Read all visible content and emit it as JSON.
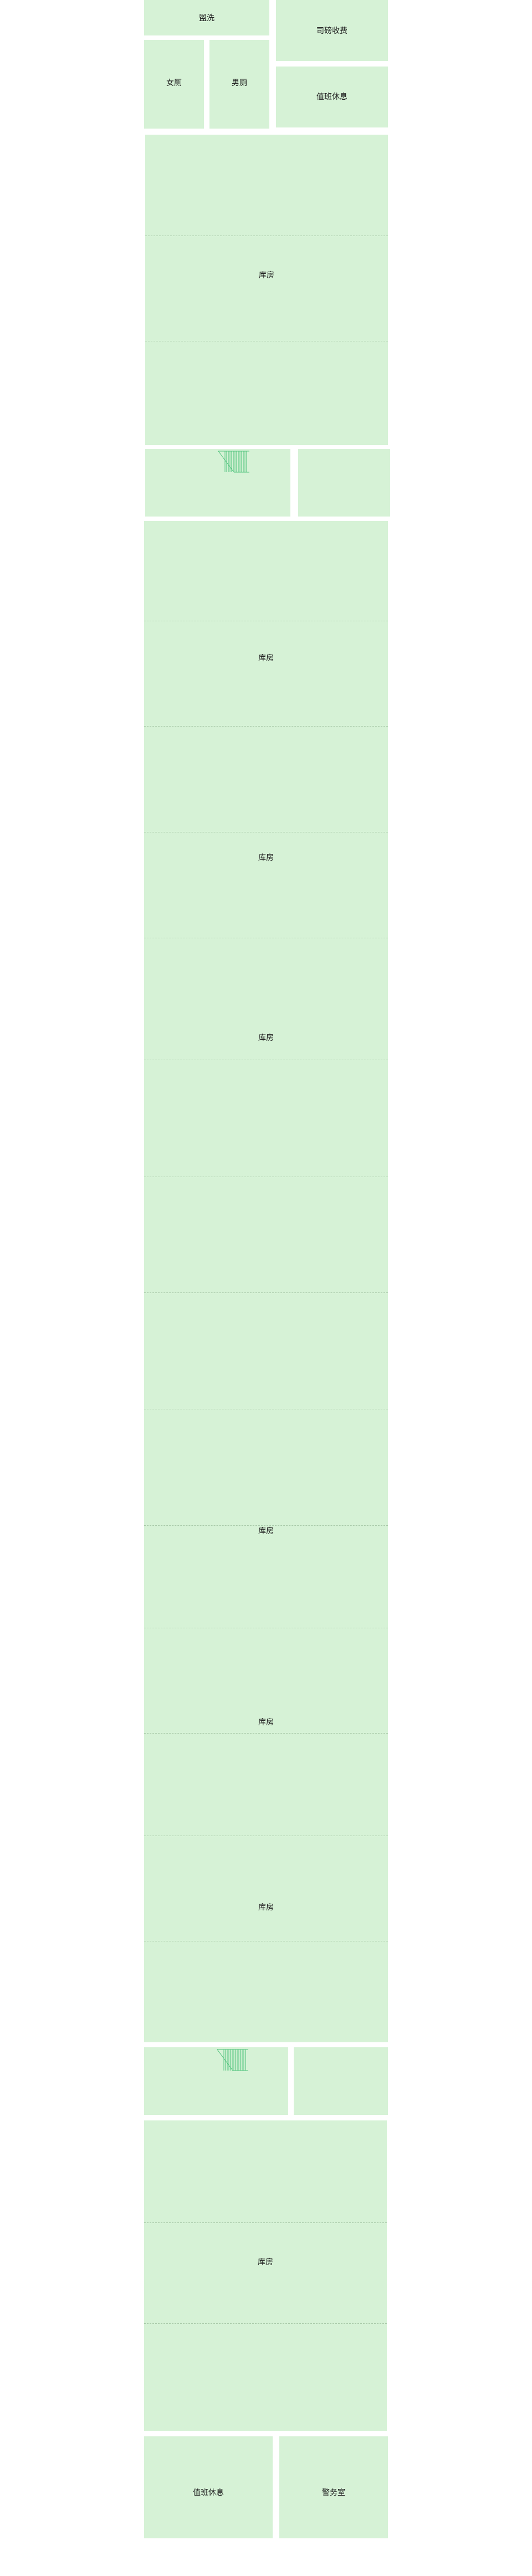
{
  "rooms": {
    "bathroom": "盥洗",
    "duty_fee": "司磅收费",
    "female_toilet": "女厕",
    "male_toilet": "男厕",
    "rest_room_top": "值班休息",
    "warehouse_1": "库房",
    "warehouse_2": "库房",
    "warehouse_3": "库房",
    "warehouse_4": "库房",
    "warehouse_5": "库房",
    "warehouse_6": "库房",
    "warehouse_7": "库房",
    "warehouse_8": "库房",
    "rest_room_bottom": "值班休息",
    "guard_room": "警务室"
  },
  "colors": {
    "room_fill": "#d6f2d6",
    "stair_stripe": "#4cc27a",
    "dash": "#a9c9a9",
    "background": "#ffffff"
  }
}
